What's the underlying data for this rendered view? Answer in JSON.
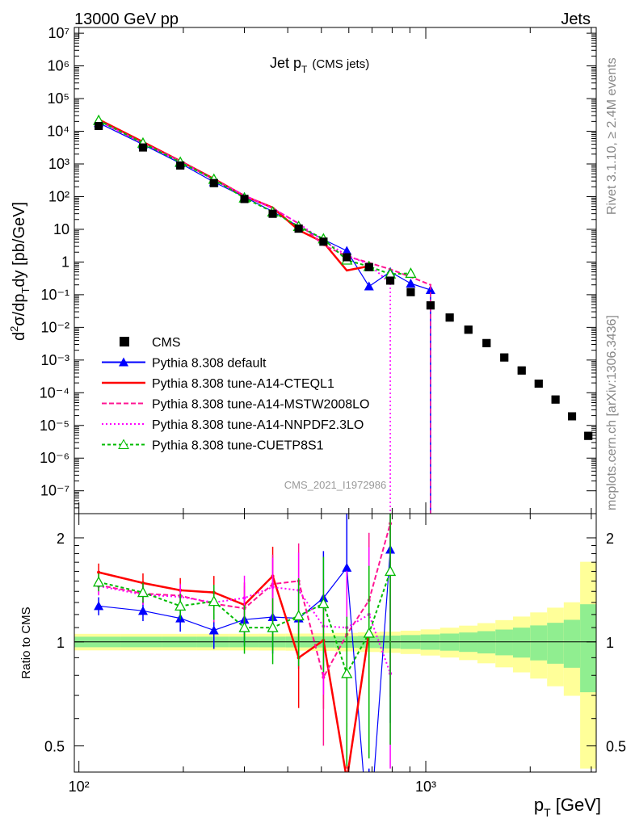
{
  "header": {
    "left": "13000 GeV pp",
    "right": "Jets"
  },
  "side_labels": {
    "rivet": "Rivet 3.1.10, ≥ 2.4M events",
    "mcplots": "mcplots.cern.ch [arXiv:1306.3436]"
  },
  "watermark": "CMS_2021_I1972986",
  "chart_data": [
    {
      "type": "scatter",
      "title": "Jet p_T (CMS jets)",
      "title_main": "Jet p",
      "title_sub": "T",
      "title_extra": "(CMS jets)",
      "ylabel": "d²σ/dp_T dy [pb/GeV]",
      "xlabel": "p_T [GeV]",
      "xscale": "log",
      "yscale": "log",
      "xlim": [
        97,
        3100
      ],
      "ylim": [
        2e-08,
        15000000.0
      ],
      "legend_position": "bottom-left",
      "y_ticks": [
        "10⁷",
        "10⁶",
        "10⁵",
        "10⁴",
        "10³",
        "10²",
        "10",
        "1",
        "10⁻¹",
        "10⁻²",
        "10⁻³",
        "10⁻⁴",
        "10⁻⁵",
        "10⁻⁶",
        "10⁻⁷"
      ],
      "x_ticks": [
        "10²",
        "10³"
      ],
      "series": [
        {
          "name": "CMS",
          "color": "#000000",
          "style": "square",
          "x": [
            114,
            153,
            196,
            245,
            300,
            362,
            430,
            507,
            592,
            686,
            790,
            905,
            1032,
            1172,
            1327,
            1497,
            1684,
            1890,
            2116,
            2366,
            2640,
            2941
          ],
          "y": [
            14500,
            3200,
            900,
            260,
            85,
            30,
            10.5,
            4.2,
            1.4,
            0.7,
            0.27,
            0.12,
            0.047,
            0.02,
            0.0085,
            0.0033,
            0.0012,
            0.00048,
            0.00019,
            6.2e-05,
            1.9e-05,
            4.8e-06
          ]
        },
        {
          "name": "Pythia 8.308 default",
          "color": "#0000ff",
          "style": "triangle-filled",
          "x": [
            114,
            153,
            196,
            245,
            300,
            362,
            430,
            507,
            592,
            686,
            790,
            905,
            1032
          ],
          "y": [
            18000,
            3950,
            1050,
            280,
            98,
            35,
            12.2,
            4.9,
            2.2,
            0.18,
            0.5,
            0.22,
            0.14
          ]
        },
        {
          "name": "Pythia 8.308 tune-A14-CTEQL1",
          "color": "#ff0000",
          "style": "solid",
          "x": [
            114,
            153,
            196,
            245,
            300,
            362,
            430,
            507,
            592,
            686
          ],
          "y": [
            23000,
            4700,
            1220,
            350,
            105,
            46,
            9.5,
            4.0,
            0.55,
            0.75
          ]
        },
        {
          "name": "Pythia 8.308 tune-A14-MSTW2008LO",
          "color": "#ff1493",
          "style": "dashed",
          "x": [
            114,
            153,
            196,
            245,
            300,
            362,
            430,
            507,
            592,
            686,
            790,
            905,
            1032
          ],
          "y": [
            21000,
            4400,
            1200,
            330,
            108,
            44,
            15,
            3.3,
            1.5,
            0.95,
            0.6,
            0.35,
            0.2
          ]
        },
        {
          "name": "Pythia 8.308 tune-A14-NNPDF2.3LO",
          "color": "#ff00ff",
          "style": "dotted",
          "x": [
            114,
            153,
            196,
            245,
            300,
            362,
            430,
            507,
            592,
            686,
            790
          ],
          "y": [
            20500,
            4300,
            1210,
            330,
            110,
            44,
            15,
            4.5,
            1.6,
            0.85,
            0.22
          ]
        },
        {
          "name": "Pythia 8.308 tune-CUETP8S1",
          "color": "#00bb00",
          "style": "triangle-open",
          "x": [
            114,
            153,
            196,
            245,
            300,
            362,
            430,
            507,
            592,
            686,
            790,
            905
          ],
          "y": [
            21500,
            4350,
            1130,
            340,
            91,
            34,
            12.3,
            5.1,
            1.15,
            0.73,
            0.43,
            0.45
          ]
        }
      ]
    },
    {
      "type": "scatter",
      "ylabel": "Ratio to CMS",
      "xscale": "log",
      "yscale": "log",
      "xlim": [
        97,
        3100
      ],
      "ylim": [
        0.42,
        2.35
      ],
      "y_ticks": [
        "2",
        "1",
        "0.5"
      ],
      "y_ticks_right": [
        "2",
        "1",
        "0.5"
      ],
      "uncertainty_bands": {
        "inner_color": "#90ee90",
        "outer_color": "#ffff99"
      },
      "series": [
        {
          "name": "Pythia 8.308 default",
          "color": "#0000ff",
          "style": "triangle-filled",
          "x": [
            114,
            153,
            196,
            245,
            300,
            362,
            430,
            507,
            592,
            686,
            790
          ],
          "y": [
            1.27,
            1.23,
            1.17,
            1.08,
            1.16,
            1.18,
            1.17,
            1.34,
            1.64,
            0.26,
            1.85
          ]
        },
        {
          "name": "Pythia 8.308 tune-A14-CTEQL1",
          "color": "#ff0000",
          "style": "solid",
          "x": [
            114,
            153,
            196,
            245,
            300,
            362,
            430,
            507,
            592,
            686
          ],
          "y": [
            1.59,
            1.48,
            1.41,
            1.39,
            1.28,
            1.55,
            0.9,
            1.01,
            0.4,
            1.07
          ]
        },
        {
          "name": "Pythia 8.308 tune-A14-MSTW2008LO",
          "color": "#ff1493",
          "style": "dashed",
          "x": [
            114,
            153,
            196,
            245,
            300,
            362,
            430,
            507,
            592,
            686,
            790
          ],
          "y": [
            1.46,
            1.38,
            1.36,
            1.29,
            1.25,
            1.47,
            1.5,
            0.79,
            1.05,
            1.32,
            2.2
          ]
        },
        {
          "name": "Pythia 8.308 tune-A14-NNPDF2.3LO",
          "color": "#ff00ff",
          "style": "dotted",
          "x": [
            114,
            153,
            196,
            245,
            300,
            362,
            430,
            507,
            592,
            686,
            790
          ],
          "y": [
            1.45,
            1.37,
            1.35,
            1.3,
            1.34,
            1.44,
            1.41,
            1.11,
            1.1,
            1.2,
            0.81
          ]
        },
        {
          "name": "Pythia 8.308 tune-CUETP8S1",
          "color": "#00bb00",
          "style": "triangle-open",
          "x": [
            114,
            153,
            196,
            245,
            300,
            362,
            430,
            507,
            592,
            686,
            790
          ],
          "y": [
            1.49,
            1.39,
            1.27,
            1.31,
            1.1,
            1.1,
            1.19,
            1.29,
            0.81,
            1.06,
            1.6
          ]
        }
      ]
    }
  ]
}
